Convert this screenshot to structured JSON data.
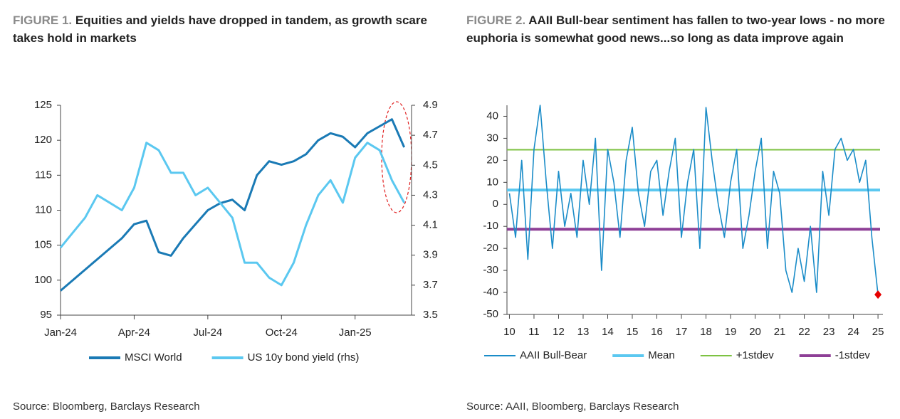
{
  "chart_data": [
    {
      "type": "line",
      "label": "FIGURE 1.",
      "title": "Equities and yields have dropped in tandem, as growth scare takes hold in markets",
      "source": "Source: Bloomberg, Barclays Research",
      "x": [
        0,
        0.5,
        1,
        1.5,
        2,
        2.5,
        3,
        3.5,
        4,
        4.5,
        5,
        5.5,
        6,
        6.5,
        7,
        7.5,
        8,
        8.5,
        9,
        9.5,
        10,
        10.5,
        11,
        11.5,
        12,
        12.5,
        13,
        13.5,
        14
      ],
      "xlim": [
        0,
        14.3
      ],
      "xticks": [
        {
          "value": 0,
          "label": "Jan-24"
        },
        {
          "value": 3,
          "label": "Apr-24"
        },
        {
          "value": 6,
          "label": "Jul-24"
        },
        {
          "value": 9,
          "label": "Oct-24"
        },
        {
          "value": 12,
          "label": "Jan-25"
        }
      ],
      "ylim": [
        95,
        125
      ],
      "yticks": [
        95,
        100,
        105,
        110,
        115,
        120,
        125
      ],
      "y2lim": [
        3.5,
        4.9
      ],
      "y2ticks": [
        3.5,
        3.7,
        3.9,
        4.1,
        4.3,
        4.5,
        4.7,
        4.9
      ],
      "series": [
        {
          "name": "MSCI World",
          "color": "#1a7ab5",
          "values": [
            98.5,
            100,
            101.5,
            103,
            104.5,
            106,
            108,
            108.5,
            104,
            103.5,
            106,
            108,
            110,
            111,
            111.5,
            110,
            115,
            117,
            116.5,
            117,
            118,
            120,
            121,
            120.5,
            119,
            121,
            122,
            123,
            119
          ]
        },
        {
          "name": "US 10y bond yield (rhs)",
          "color": "#5bc8f0",
          "axis": "y2",
          "values": [
            3.95,
            4.05,
            4.15,
            4.3,
            4.25,
            4.2,
            4.35,
            4.65,
            4.6,
            4.45,
            4.45,
            4.3,
            4.35,
            4.25,
            4.15,
            3.85,
            3.85,
            3.75,
            3.7,
            3.85,
            4.1,
            4.3,
            4.4,
            4.25,
            4.55,
            4.65,
            4.6,
            4.4,
            4.25
          ]
        }
      ]
    },
    {
      "type": "line",
      "label": "FIGURE 2.",
      "title": "AAII Bull-bear sentiment has fallen to two-year lows - no more euphoria is somewhat good news...so long as data improve again",
      "source": "Source: AAII, Bloomberg, Barclays Research",
      "x": [
        10,
        10.25,
        10.5,
        10.75,
        11,
        11.25,
        11.5,
        11.75,
        12,
        12.25,
        12.5,
        12.75,
        13,
        13.25,
        13.5,
        13.75,
        14,
        14.25,
        14.5,
        14.75,
        15,
        15.25,
        15.5,
        15.75,
        16,
        16.25,
        16.5,
        16.75,
        17,
        17.25,
        17.5,
        17.75,
        18,
        18.25,
        18.5,
        18.75,
        19,
        19.25,
        19.5,
        19.75,
        20,
        20.25,
        20.5,
        20.75,
        21,
        21.25,
        21.5,
        21.75,
        22,
        22.25,
        22.5,
        22.75,
        23,
        23.25,
        23.5,
        23.75,
        24,
        24.25,
        24.5,
        24.75,
        25
      ],
      "xlim": [
        9.9,
        25.2
      ],
      "xticks": [
        10,
        11,
        12,
        13,
        14,
        15,
        16,
        17,
        18,
        19,
        20,
        21,
        22,
        23,
        24,
        25
      ],
      "ylim": [
        -50,
        45
      ],
      "yticks": [
        -50,
        -40,
        -30,
        -20,
        -10,
        0,
        10,
        20,
        30,
        40
      ],
      "series": [
        {
          "name": "AAII Bull-Bear",
          "color": "#1a8cc8",
          "last_point_color": "#e60000",
          "values": [
            5,
            -15,
            20,
            -25,
            25,
            45,
            10,
            -20,
            15,
            -10,
            5,
            -15,
            20,
            0,
            30,
            -30,
            25,
            10,
            -15,
            20,
            35,
            5,
            -10,
            15,
            20,
            -5,
            15,
            30,
            -15,
            10,
            25,
            -20,
            44,
            20,
            0,
            -15,
            10,
            25,
            -20,
            -5,
            15,
            30,
            -20,
            15,
            5,
            -30,
            -40,
            -20,
            -35,
            -10,
            -40,
            15,
            -5,
            25,
            30,
            20,
            25,
            10,
            20,
            -15,
            -41
          ]
        }
      ],
      "reference_lines": [
        {
          "name": "Mean",
          "color": "#5bc8f0",
          "value": 6.5
        },
        {
          "name": "+1stdev",
          "color": "#7dc242",
          "value": 24.8
        },
        {
          "name": "-1stdev",
          "color": "#8e3f96",
          "value": -11.3
        }
      ]
    }
  ]
}
